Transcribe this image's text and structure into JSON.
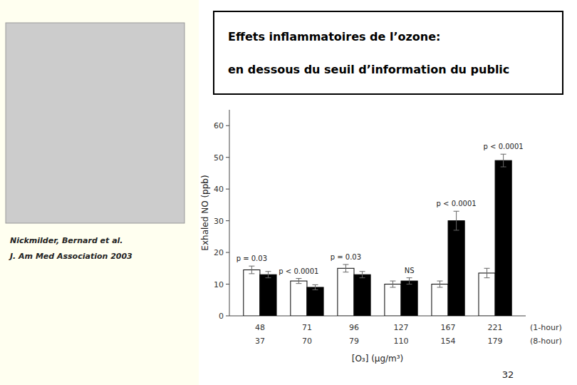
{
  "chart_data": {
    "type": "bar",
    "title": "Effets inflammatoires de l’ozone:",
    "subtitle": "en dessous du seuil d’information du public",
    "ylabel": "Exhaled NO (ppb)",
    "xlabel": "[O₃] (µg/m³)",
    "categories": [
      [
        "48",
        "37"
      ],
      [
        "71",
        "70"
      ],
      [
        "96",
        "79"
      ],
      [
        "127",
        "110"
      ],
      [
        "167",
        "154"
      ],
      [
        "221",
        "179"
      ]
    ],
    "category_rows": [
      "(1-hour)",
      "(8-hour)"
    ],
    "series": [
      {
        "color": "#ffffff",
        "values": [
          14.5,
          11.0,
          15.0,
          10.0,
          10.0,
          13.5
        ],
        "errors": [
          1.2,
          0.8,
          1.2,
          1.0,
          1.0,
          1.5
        ]
      },
      {
        "color": "#000000",
        "values": [
          13.0,
          9.0,
          13.0,
          11.0,
          30.0,
          49.0
        ],
        "errors": [
          1.0,
          0.8,
          1.0,
          1.0,
          3.0,
          2.0
        ]
      }
    ],
    "annotations": [
      {
        "text": "p = 0.03",
        "category": 0,
        "series": 0
      },
      {
        "text": "p < 0.0001",
        "category": 1,
        "series": 0
      },
      {
        "text": "p = 0.03",
        "category": 2,
        "series": 0
      },
      {
        "text": "NS",
        "category": 3,
        "series": 1
      },
      {
        "text": "p < 0.0001",
        "category": 4,
        "series": 1
      },
      {
        "text": "p < 0.0001",
        "category": 5,
        "series": 1
      }
    ],
    "ylim": [
      0,
      65
    ],
    "yticks": [
      0,
      10,
      20,
      30,
      40,
      50,
      60
    ],
    "grid": false
  },
  "source": [
    "Nickmilder, Bernard et al.",
    "J. Am Med Association 2003"
  ],
  "page_number": "32"
}
